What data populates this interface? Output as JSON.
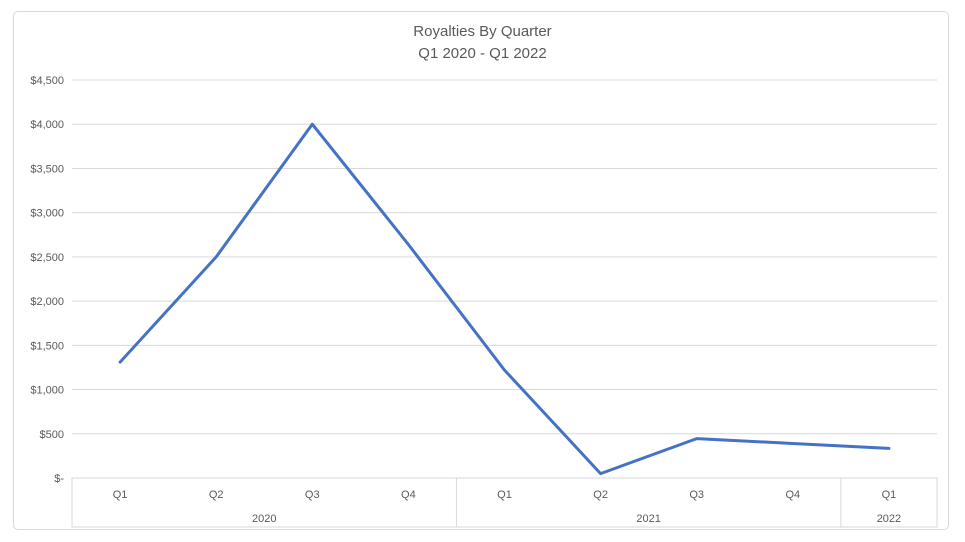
{
  "chart": {
    "title_line1": "Royalties By Quarter",
    "title_line2": "Q1 2020 - Q1 2022",
    "colors": {
      "line": "#4472C4",
      "grid": "#D9D9D9",
      "border": "#D9D9D9",
      "text": "#595959",
      "background": "#FFFFFF"
    }
  },
  "chart_data": {
    "type": "line",
    "title": "Royalties By Quarter",
    "subtitle": "Q1 2020 - Q1 2022",
    "xlabel": "",
    "ylabel": "",
    "categories": [
      "Q1 2020",
      "Q2 2020",
      "Q3 2020",
      "Q4 2020",
      "Q1 2021",
      "Q2 2021",
      "Q3 2021",
      "Q4 2021",
      "Q1 2022"
    ],
    "x_groups": [
      {
        "year": "2020",
        "quarters": [
          "Q1",
          "Q2",
          "Q3",
          "Q4"
        ]
      },
      {
        "year": "2021",
        "quarters": [
          "Q1",
          "Q2",
          "Q3",
          "Q4"
        ]
      },
      {
        "year": "2022",
        "quarters": [
          "Q1"
        ]
      }
    ],
    "series": [
      {
        "name": "Royalties",
        "values": [
          1310,
          2500,
          4000,
          2640,
          1220,
          50,
          445,
          390,
          335
        ]
      }
    ],
    "y_ticks": [
      {
        "label": "$4,500",
        "value": 4500
      },
      {
        "label": "$4,000",
        "value": 4000
      },
      {
        "label": "$3,500",
        "value": 3500
      },
      {
        "label": "$3,000",
        "value": 3000
      },
      {
        "label": "$2,500",
        "value": 2500
      },
      {
        "label": "$2,000",
        "value": 2000
      },
      {
        "label": "$1,500",
        "value": 1500
      },
      {
        "label": "$1,000",
        "value": 1000
      },
      {
        "label": "$500",
        "value": 500
      },
      {
        "label": "$-",
        "value": 0
      }
    ],
    "ylim": [
      0,
      4500
    ],
    "grid": true,
    "legend": false
  }
}
